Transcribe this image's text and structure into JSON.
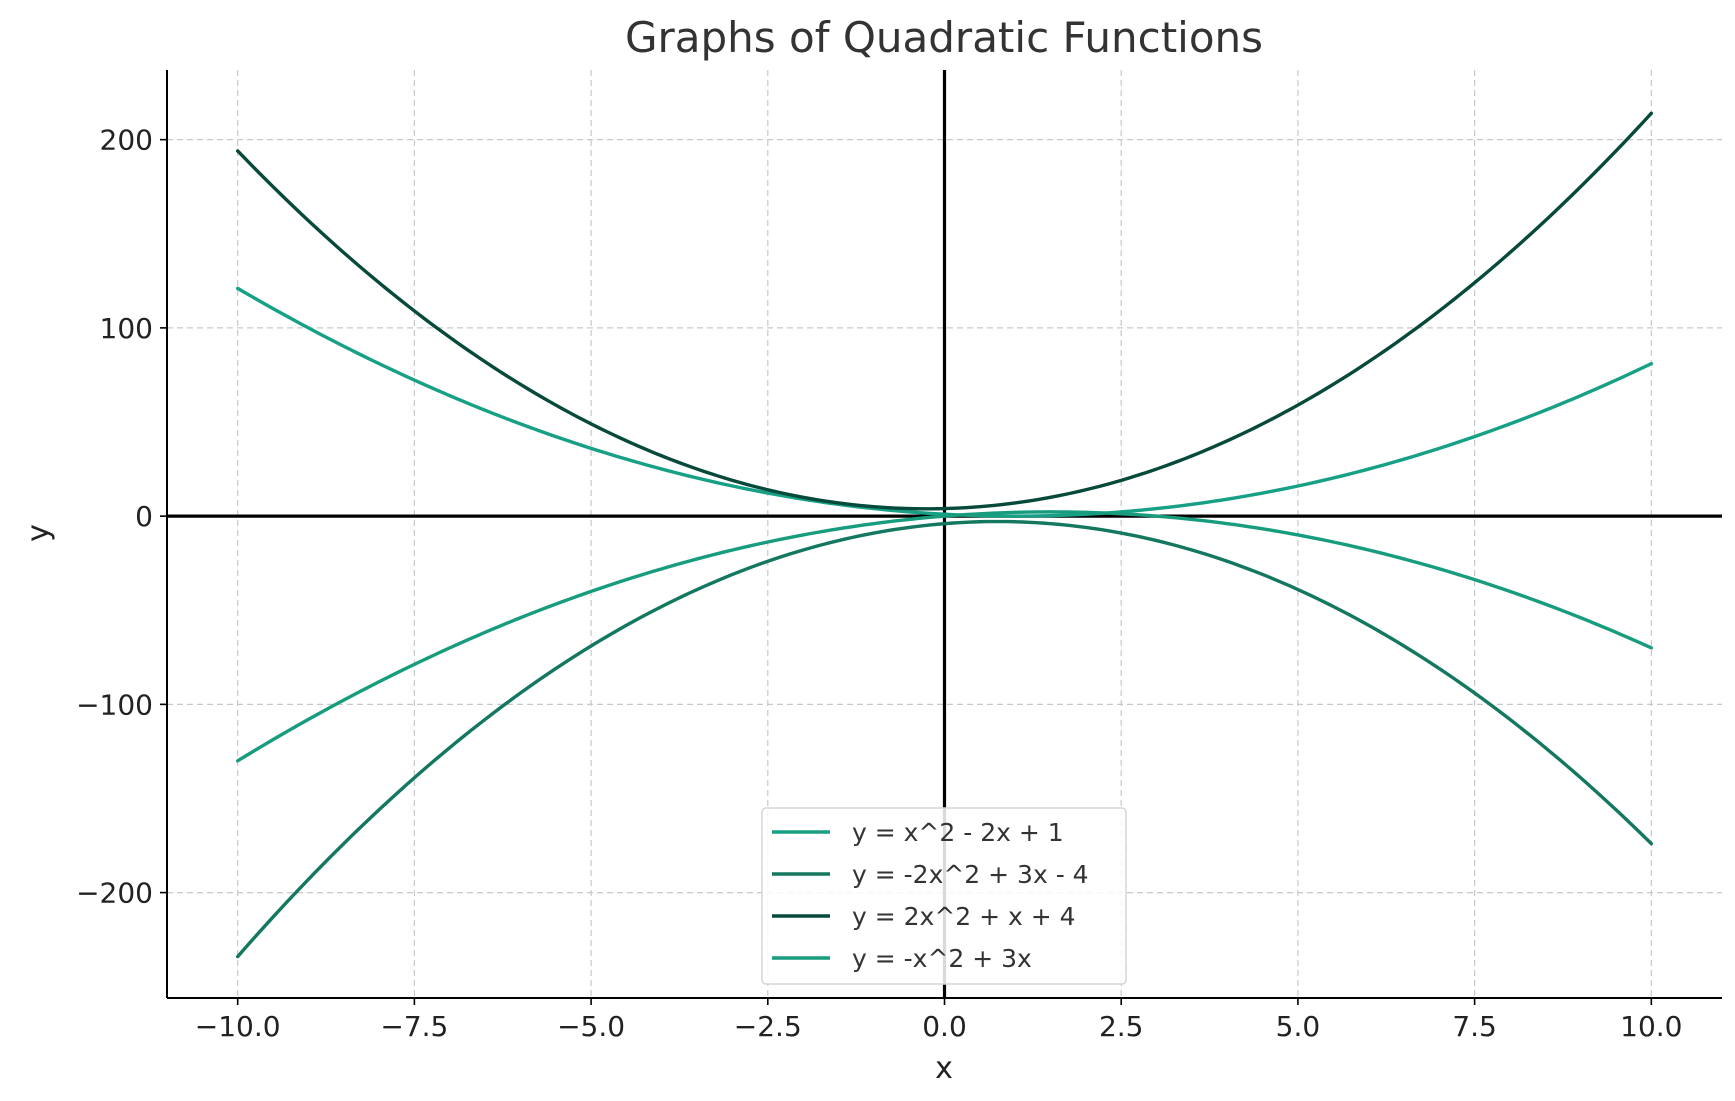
{
  "chart_data": {
    "type": "line",
    "title": "Graphs of Quadratic Functions",
    "xlabel": "x",
    "ylabel": "y",
    "xlim": [
      -11,
      11
    ],
    "ylim": [
      -256,
      237
    ],
    "grid": true,
    "legend_position": "bottom-center",
    "x_ticks": [
      -10.0,
      -7.5,
      -5.0,
      -2.5,
      0.0,
      2.5,
      5.0,
      7.5,
      10.0
    ],
    "x_tick_labels": [
      "−10.0",
      "−7.5",
      "−5.0",
      "−2.5",
      "0.0",
      "2.5",
      "5.0",
      "7.5",
      "10.0"
    ],
    "y_ticks": [
      -200,
      -100,
      0,
      100,
      200
    ],
    "y_tick_labels": [
      "−200",
      "−100",
      "0",
      "100",
      "200"
    ],
    "x_domain": [
      -10,
      10
    ],
    "series": [
      {
        "name": "y = x^2 - 2x + 1",
        "coefficients": [
          1,
          -2,
          1
        ],
        "color": "#16a085"
      },
      {
        "name": "y = -2x^2 + 3x - 4",
        "coefficients": [
          -2,
          3,
          -4
        ],
        "color": "#13785f"
      },
      {
        "name": "y = 2x^2 + x + 4",
        "coefficients": [
          2,
          1,
          4
        ],
        "color": "#07493a"
      },
      {
        "name": "y = -x^2 + 3x",
        "coefficients": [
          -1,
          3,
          0
        ],
        "color": "#179c7e"
      }
    ]
  }
}
